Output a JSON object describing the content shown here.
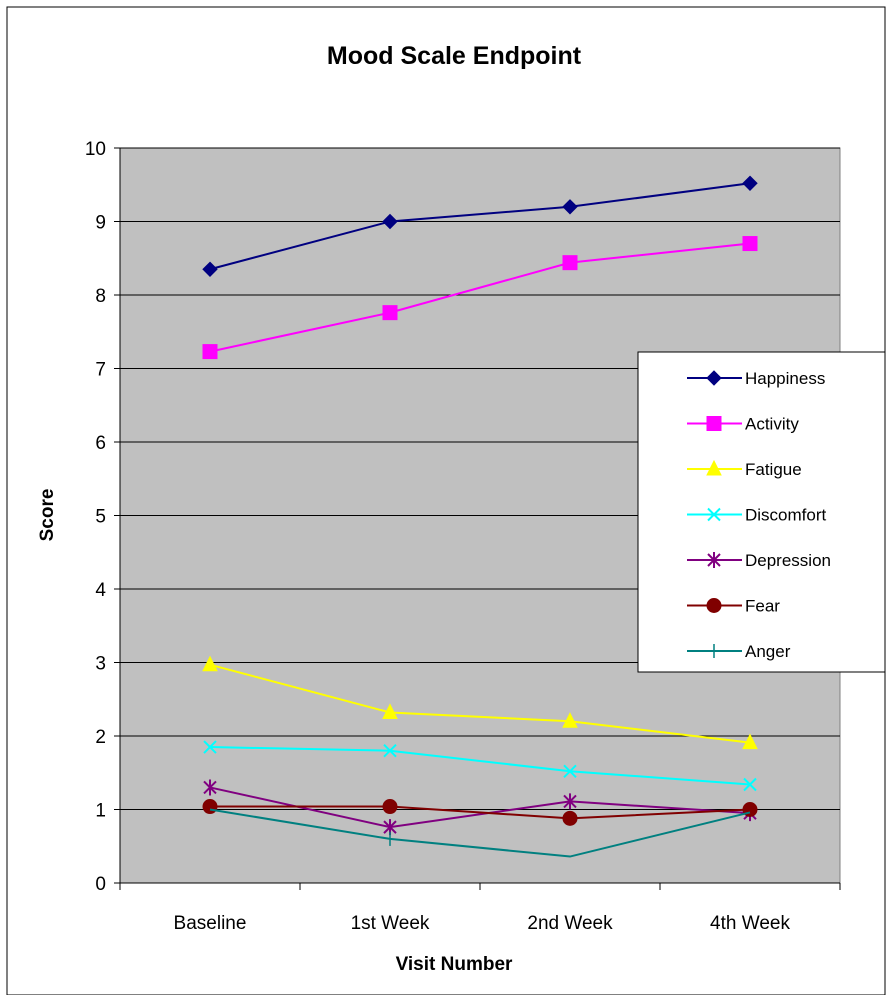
{
  "chart_data": {
    "type": "line",
    "title": "Mood Scale Endpoint",
    "xlabel": "Visit Number",
    "ylabel": "Score",
    "categories": [
      "Baseline",
      "1st Week",
      "2nd Week",
      "4th Week"
    ],
    "y_ticks": [
      "0",
      "1",
      "2",
      "3",
      "4",
      "5",
      "6",
      "7",
      "8",
      "9",
      "10"
    ],
    "ylim": [
      0,
      10
    ],
    "grid": true,
    "plot_background": "#c0c0c0",
    "legend_position": "right",
    "series": [
      {
        "name": "Happiness",
        "values": [
          8.35,
          9.0,
          9.2,
          9.52
        ],
        "color": "#000080",
        "marker": "diamond"
      },
      {
        "name": "Activity",
        "values": [
          7.23,
          7.76,
          8.44,
          8.7
        ],
        "color": "#ff00ff",
        "marker": "square"
      },
      {
        "name": "Fatigue",
        "values": [
          2.97,
          2.32,
          2.2,
          1.91
        ],
        "color": "#ffff00",
        "marker": "triangle"
      },
      {
        "name": "Discomfort",
        "values": [
          1.85,
          1.8,
          1.52,
          1.34
        ],
        "color": "#00ffff",
        "marker": "x"
      },
      {
        "name": "Depression",
        "values": [
          1.3,
          0.76,
          1.11,
          0.95
        ],
        "color": "#800080",
        "marker": "asterisk"
      },
      {
        "name": "Fear",
        "values": [
          1.04,
          1.04,
          0.88,
          1.0
        ],
        "color": "#800000",
        "marker": "circle"
      },
      {
        "name": "Anger",
        "values": [
          1.0,
          0.6,
          0.36,
          0.96
        ],
        "color": "#008080",
        "marker": "plus"
      }
    ]
  }
}
